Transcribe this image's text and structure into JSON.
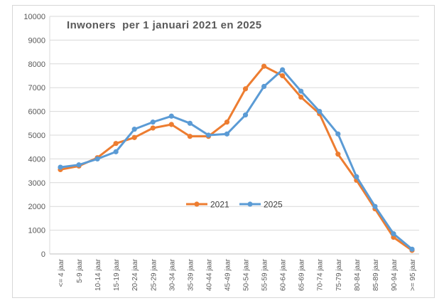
{
  "chart_data": {
    "type": "line",
    "title": "Inwoners  per 1 januari 2021 en 2025",
    "categories": [
      "<= 4 jaar",
      "5-9 jaar",
      "10-14 jaar",
      "15-19 jaar",
      "20-24 jaar",
      "25-29 jaar",
      "30-34 jaar",
      "35-39 jaar",
      "40-44 jaar",
      "45-49 jaar",
      "50-54 jaar",
      "55-59 jaar",
      "60-64 jaar",
      "65-69 jaar",
      "70-74 jaar",
      "75-79 jaar",
      "80-84 jaar",
      "85-89 jaar",
      "90-94 jaar",
      ">= 95 jaar"
    ],
    "series": [
      {
        "name": "2021",
        "color": "#ED7D31",
        "values": [
          3550,
          3700,
          4050,
          4650,
          4900,
          5300,
          5450,
          4950,
          4950,
          5550,
          6950,
          7900,
          7500,
          6600,
          5900,
          4200,
          3100,
          1900,
          700,
          150
        ]
      },
      {
        "name": "2025",
        "color": "#5B9BD5",
        "values": [
          3650,
          3750,
          4000,
          4300,
          5250,
          5550,
          5800,
          5500,
          5000,
          5050,
          5850,
          7050,
          7750,
          6850,
          6000,
          5050,
          3250,
          2000,
          850,
          200
        ]
      }
    ],
    "xlabel": "",
    "ylabel": "",
    "ylim": [
      0,
      10000
    ],
    "ytick_step": 1000,
    "yticks": [
      "0",
      "1000",
      "2000",
      "3000",
      "4000",
      "5000",
      "6000",
      "7000",
      "8000",
      "9000",
      "10000"
    ],
    "grid": true,
    "legend_position": "inside-bottom-center",
    "legend_entries": [
      "2021",
      "2025"
    ]
  },
  "colors": {
    "gridline": "#d9d9d9",
    "axis_line": "#bfbfbf",
    "tick_text": "#595959",
    "legend_text": "#404040",
    "title_text": "#595959",
    "frame_border": "#d7d7d7",
    "series_2021": "#ED7D31",
    "series_2025": "#5B9BD5"
  }
}
